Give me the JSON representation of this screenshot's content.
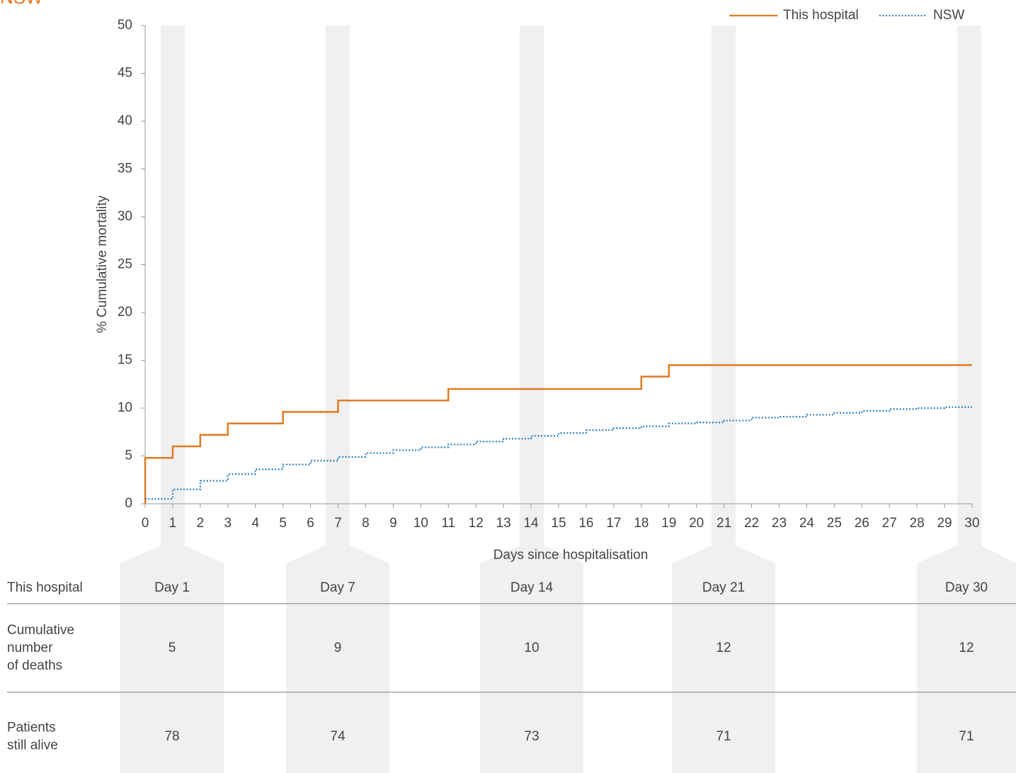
{
  "chart_data": {
    "type": "step",
    "title": "NSW",
    "xlabel": "Days since hospitalisation",
    "ylabel": "% Cumulative mortality",
    "xlim": [
      0,
      30
    ],
    "xticks": [
      0,
      1,
      2,
      3,
      4,
      5,
      6,
      7,
      8,
      9,
      10,
      11,
      12,
      13,
      14,
      15,
      16,
      17,
      18,
      19,
      20,
      21,
      22,
      23,
      24,
      25,
      26,
      27,
      28,
      29,
      30
    ],
    "ylim": [
      0,
      50
    ],
    "yticks": [
      0,
      5,
      10,
      15,
      20,
      25,
      30,
      35,
      40,
      45,
      50
    ],
    "legend": "top-right",
    "series": [
      {
        "name": "This hospital",
        "color": "#e07b20",
        "style": "solid",
        "x": [
          0,
          0,
          1,
          2,
          3,
          5,
          7,
          11,
          18,
          19,
          30
        ],
        "values": [
          0,
          4.8,
          6.0,
          7.2,
          8.4,
          9.6,
          10.8,
          12.0,
          13.3,
          14.5,
          14.5
        ]
      },
      {
        "name": "NSW",
        "color": "#2b7fc1",
        "style": "dotted",
        "x": [
          0,
          1,
          2,
          3,
          4,
          5,
          6,
          7,
          8,
          9,
          10,
          11,
          12,
          13,
          14,
          15,
          16,
          17,
          18,
          19,
          20,
          21,
          22,
          23,
          24,
          25,
          26,
          27,
          28,
          29,
          30
        ],
        "values": [
          0.5,
          1.5,
          2.4,
          3.1,
          3.6,
          4.1,
          4.5,
          4.9,
          5.3,
          5.6,
          5.9,
          6.2,
          6.5,
          6.8,
          7.1,
          7.4,
          7.7,
          7.9,
          8.1,
          8.4,
          8.5,
          8.7,
          9.0,
          9.1,
          9.3,
          9.5,
          9.7,
          9.9,
          10.0,
          10.1,
          10.1
        ]
      }
    ]
  },
  "table": {
    "header": "This hospital",
    "columns": [
      "Day 1",
      "Day 7",
      "Day 14",
      "Day 21",
      "Day 30"
    ],
    "rows": [
      {
        "label": [
          "Cumulative",
          "number",
          "of deaths"
        ],
        "values": [
          "5",
          "9",
          "10",
          "12",
          "12"
        ]
      },
      {
        "label": [
          "Patients",
          "still alive"
        ],
        "values": [
          "78",
          "74",
          "73",
          "71",
          "71"
        ]
      }
    ]
  }
}
